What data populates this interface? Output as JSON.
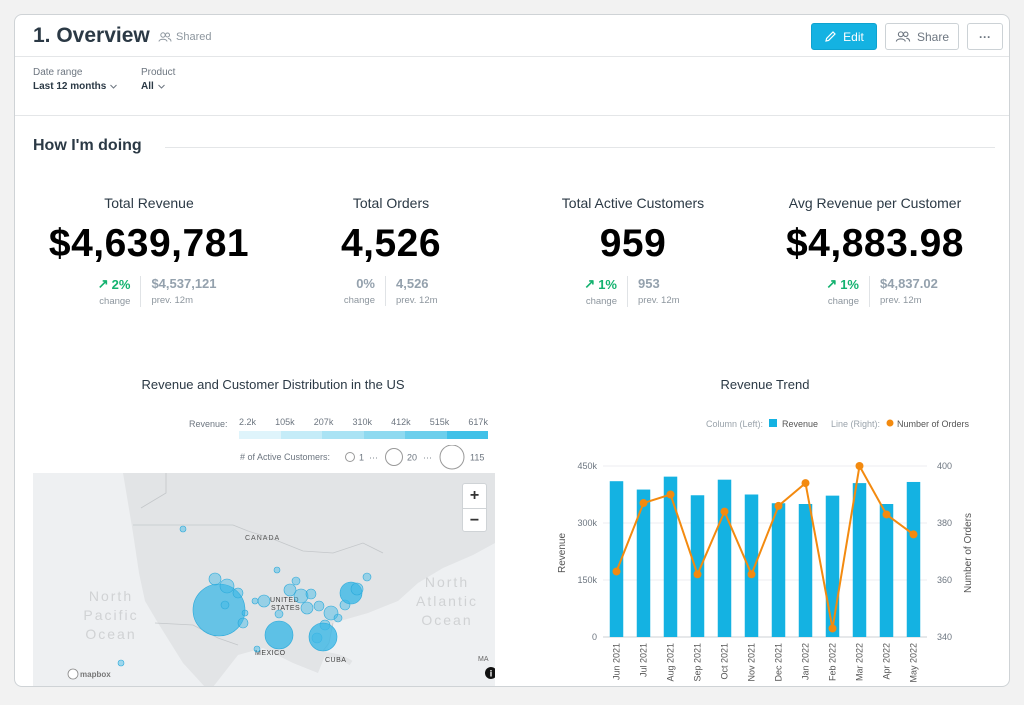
{
  "header": {
    "title": "1. Overview",
    "shared_label": "Shared",
    "edit_label": "Edit",
    "share_label": "Share",
    "more_label": "···"
  },
  "filters": [
    {
      "label": "Date range",
      "value": "Last 12 months"
    },
    {
      "label": "Product",
      "value": "All"
    }
  ],
  "section": {
    "title": "How I'm doing"
  },
  "kpis": [
    {
      "title": "Total Revenue",
      "value": "$4,639,781",
      "change": "2%",
      "change_dir": "up",
      "change_label": "change",
      "prev": "$4,537,121",
      "prev_label": "prev. 12m"
    },
    {
      "title": "Total Orders",
      "value": "4,526",
      "change": "0%",
      "change_dir": "none",
      "change_label": "change",
      "prev": "4,526",
      "prev_label": "prev. 12m"
    },
    {
      "title": "Total Active Customers",
      "value": "959",
      "change": "1%",
      "change_dir": "up",
      "change_label": "change",
      "prev": "953",
      "prev_label": "prev. 12m"
    },
    {
      "title": "Avg Revenue per Customer",
      "value": "$4,883.98",
      "change": "1%",
      "change_dir": "up",
      "change_label": "change",
      "prev": "$4,837.02",
      "prev_label": "prev. 12m"
    }
  ],
  "map_widget": {
    "title": "Revenue and Customer Distribution in the US",
    "revenue_label": "Revenue:",
    "revenue_ticks": [
      "2.2k",
      "105k",
      "207k",
      "310k",
      "412k",
      "515k",
      "617k"
    ],
    "customers_label": "# of Active Customers:",
    "size_legend": [
      "1",
      "20",
      "115"
    ],
    "size_dots": "···",
    "zoom_in": "+",
    "zoom_out": "−",
    "place_labels": [
      "CANADA",
      "UNITED",
      "STATES",
      "MEXICO",
      "CUBA",
      "MA"
    ],
    "ocean_labels": [
      "North",
      "Pacific",
      "Ocean",
      "North",
      "Atlantic",
      "Ocean"
    ],
    "attribution": "mapbox",
    "info_icon": "i"
  },
  "chart_data": {
    "type": "bar",
    "title": "Revenue Trend",
    "legend": {
      "column_label": "Column (Left):",
      "column_series": "Revenue",
      "line_label": "Line (Right):",
      "line_series": "Number of Orders"
    },
    "categories": [
      "Jun 2021",
      "Jul 2021",
      "Aug 2021",
      "Sep 2021",
      "Oct 2021",
      "Nov 2021",
      "Dec 2021",
      "Jan 2022",
      "Feb 2022",
      "Mar 2022",
      "Apr 2022",
      "May 2022"
    ],
    "series": [
      {
        "name": "Revenue",
        "axis": "left",
        "type": "bar",
        "values": [
          410000,
          388000,
          422000,
          373000,
          414000,
          375000,
          352000,
          350000,
          372000,
          405000,
          350000,
          408000
        ]
      },
      {
        "name": "Number of Orders",
        "axis": "right",
        "type": "line",
        "values": [
          363,
          387,
          390,
          362,
          384,
          362,
          386,
          394,
          343,
          400,
          383,
          376
        ]
      }
    ],
    "ylabel": "Revenue",
    "y2label": "Number of Orders",
    "ylim": [
      0,
      450000
    ],
    "y2lim": [
      340,
      400
    ],
    "yticks": [
      "0",
      "150k",
      "300k",
      "450k"
    ],
    "y2ticks": [
      "340",
      "360",
      "380",
      "400"
    ],
    "colors": {
      "bar": "#14b2e2",
      "line": "#f38a0f"
    }
  }
}
